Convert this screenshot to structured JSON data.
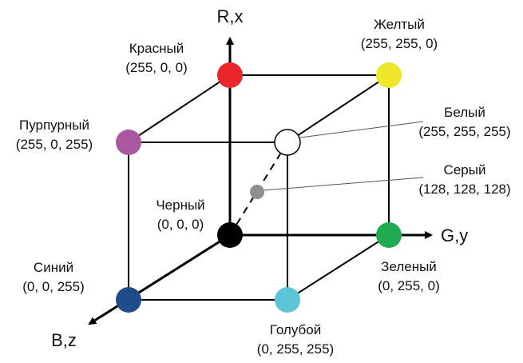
{
  "axes": {
    "r": "R,x",
    "g": "G,y",
    "b": "B,z"
  },
  "colors": {
    "red": "#e8262b",
    "yellow": "#ede62a",
    "magenta": "#a9579f",
    "white": "#ffffff",
    "gray": "#8f8f8f",
    "black": "#000000",
    "green": "#20ab52",
    "blue": "#1f4b88",
    "cyan": "#5cc5d8"
  },
  "labels": {
    "red": {
      "name": "Красный",
      "value": "(255, 0, 0)"
    },
    "yellow": {
      "name": "Желтый",
      "value": "(255, 255, 0)"
    },
    "magenta": {
      "name": "Пурпурный",
      "value": "(255, 0, 255)"
    },
    "white": {
      "name": "Белый",
      "value": "(255, 255, 255)"
    },
    "gray": {
      "name": "Серый",
      "value": "(128, 128, 128)"
    },
    "black": {
      "name": "Черный",
      "value": "(0, 0, 0)"
    },
    "green": {
      "name": "Зеленый",
      "value": "(0, 255, 0)"
    },
    "blue": {
      "name": "Синий",
      "value": "(0, 0, 255)"
    },
    "cyan": {
      "name": "Голубой",
      "value": "(0, 255, 255)"
    }
  }
}
